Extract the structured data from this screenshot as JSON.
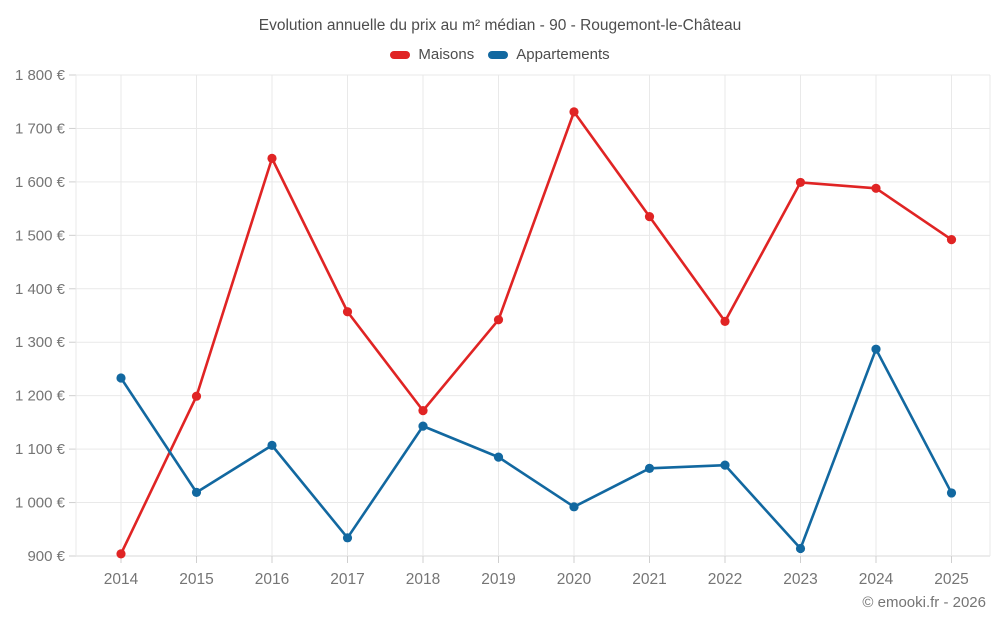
{
  "chart_data": {
    "type": "line",
    "title": "Evolution annuelle du prix au m² médian - 90 - Rougemont-le-Château",
    "categories": [
      "2014",
      "2015",
      "2016",
      "2017",
      "2018",
      "2019",
      "2020",
      "2021",
      "2022",
      "2023",
      "2024",
      "2025"
    ],
    "series": [
      {
        "name": "Maisons",
        "color": "#e02424",
        "values": [
          904,
          1199,
          1644,
          1357,
          1172,
          1342,
          1731,
          1535,
          1339,
          1599,
          1588,
          1492
        ]
      },
      {
        "name": "Appartements",
        "color": "#1268a0",
        "values": [
          1233,
          1019,
          1107,
          934,
          1143,
          1085,
          992,
          1064,
          1070,
          914,
          1287,
          1018
        ]
      }
    ],
    "ylim": [
      900,
      1800
    ],
    "y_tick_step": 100,
    "y_tick_labels": [
      "900 €",
      "1 000 €",
      "1 100 €",
      "1 200 €",
      "1 300 €",
      "1 400 €",
      "1 500 €",
      "1 600 €",
      "1 700 €",
      "1 800 €"
    ],
    "grid": true,
    "legend_position": "top",
    "xlabel": "",
    "ylabel": ""
  },
  "colors": {
    "grid": "#e9e9e9",
    "axis_tick": "#cfcfcf",
    "bottom_axis": "#d9d9d9",
    "tick_text": "#757575",
    "title_text": "#4d4d4d"
  },
  "footer": {
    "credit": "© emooki.fr - 2026"
  }
}
